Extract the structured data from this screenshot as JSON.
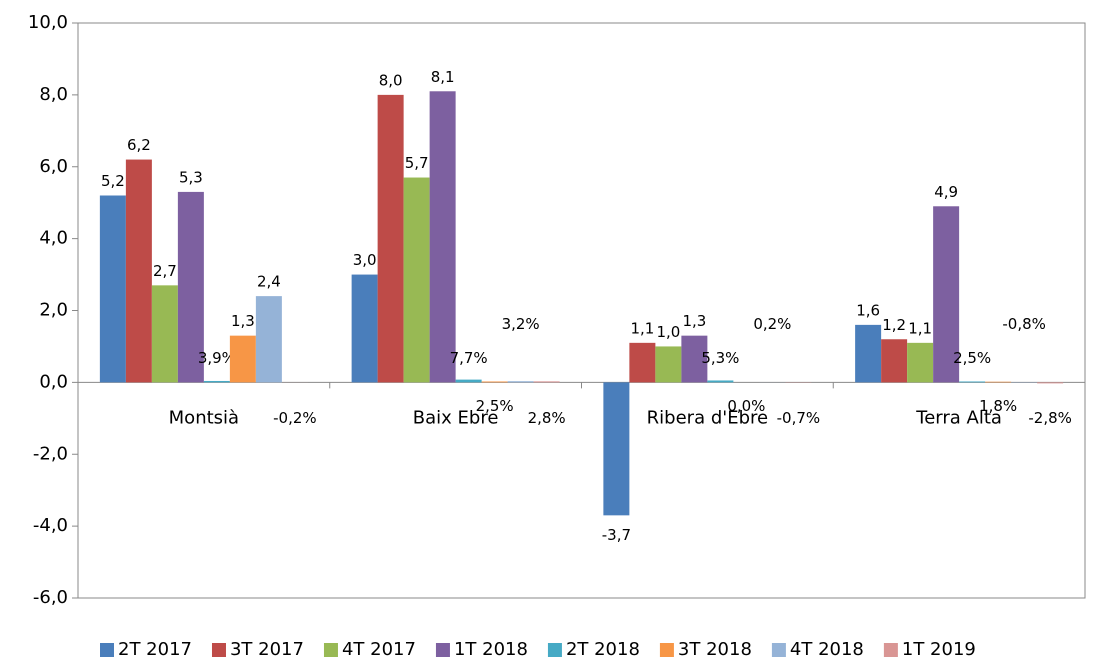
{
  "chart_data": {
    "type": "bar",
    "categories": [
      "Montsià",
      "Baix Ebre",
      "Ribera d'Ebre",
      "Terra Alta"
    ],
    "series": [
      {
        "name": "2T 2017",
        "color": "#4a7ebb",
        "values": [
          5.2,
          3.0,
          -3.7,
          1.6
        ],
        "value_labels": [
          "5,2",
          "3,0",
          "-3,7",
          "1,6"
        ]
      },
      {
        "name": "3T 2017",
        "color": "#be4b48",
        "values": [
          6.2,
          8.0,
          1.1,
          1.2
        ],
        "value_labels": [
          "6,2",
          "8,0",
          "1,1",
          "1,2"
        ]
      },
      {
        "name": "4T 2017",
        "color": "#98b954",
        "values": [
          2.7,
          5.7,
          1.0,
          1.1
        ],
        "value_labels": [
          "2,7",
          "5,7",
          "1,0",
          "1,1"
        ]
      },
      {
        "name": "1T 2018",
        "color": "#7d60a0",
        "values": [
          5.3,
          8.1,
          1.3,
          4.9
        ],
        "value_labels": [
          "5,3",
          "8,1",
          "1,3",
          "4,9"
        ]
      },
      {
        "name": "2T 2018",
        "color": "#46aac5",
        "values": [
          0.039,
          0.077,
          0.053,
          0.025
        ],
        "value_labels": [
          "3,9%",
          "7,7%",
          "5,3%",
          "2,5%"
        ]
      },
      {
        "name": "3T 2018",
        "color": "#f79646",
        "values": [
          1.3,
          0.025,
          0.0,
          0.018
        ],
        "value_labels": [
          "1,3",
          "2,5%",
          "0,0%",
          "1,8%"
        ]
      },
      {
        "name": "4T 2018",
        "color": "#95b3d7",
        "values": [
          2.4,
          0.032,
          0.002,
          -0.008
        ],
        "value_labels": [
          "2,4",
          "3,2%",
          "0,2%",
          "-0,8%"
        ]
      },
      {
        "name": "1T 2019",
        "color": "#d99694",
        "values": [
          -0.002,
          0.028,
          -0.007,
          -0.028
        ],
        "value_labels": [
          "-0,2%",
          "2,8%",
          "-0,7%",
          "-2,8%"
        ]
      }
    ],
    "ylim": [
      -6,
      10
    ],
    "yticks": [
      {
        "value": -6,
        "label": "-6,0"
      },
      {
        "value": -4,
        "label": "-4,0"
      },
      {
        "value": -2,
        "label": "-2,0"
      },
      {
        "value": 0,
        "label": "0,0"
      },
      {
        "value": 2,
        "label": "2,0"
      },
      {
        "value": 4,
        "label": "4,0"
      },
      {
        "value": 6,
        "label": "6,0"
      },
      {
        "value": 8,
        "label": "8,0"
      },
      {
        "value": 10,
        "label": "10,0"
      }
    ],
    "grid": false
  }
}
